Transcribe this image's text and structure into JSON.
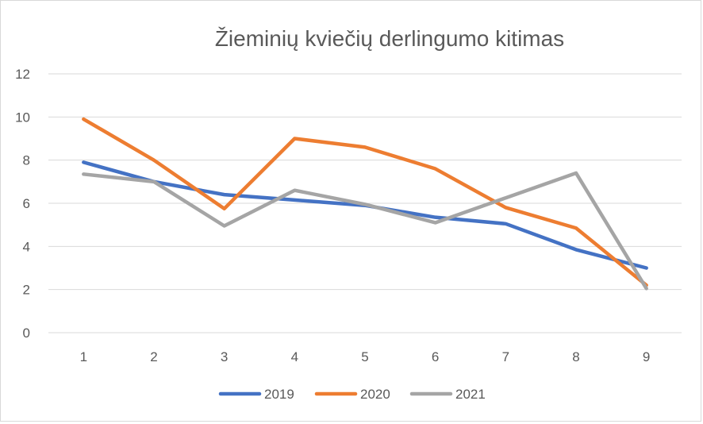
{
  "chart_data": {
    "type": "line",
    "title": "Žieminių kviečių derlingumo kitimas",
    "xlabel": "",
    "ylabel": "",
    "categories": [
      "1",
      "2",
      "3",
      "4",
      "5",
      "6",
      "7",
      "8",
      "9"
    ],
    "ylim": [
      0,
      12
    ],
    "yticks": [
      0,
      2,
      4,
      6,
      8,
      10,
      12
    ],
    "grid": true,
    "legend_position": "bottom",
    "series": [
      {
        "name": "2019",
        "color": "#4472c4",
        "values": [
          7.9,
          7.0,
          6.4,
          6.15,
          5.9,
          5.35,
          5.05,
          3.85,
          3.0
        ]
      },
      {
        "name": "2020",
        "color": "#ed7d31",
        "values": [
          9.9,
          8.0,
          5.75,
          9.0,
          8.6,
          7.6,
          5.8,
          4.85,
          2.2
        ]
      },
      {
        "name": "2021",
        "color": "#a5a5a5",
        "values": [
          7.35,
          7.0,
          4.95,
          6.6,
          5.95,
          5.1,
          6.25,
          7.4,
          2.05
        ]
      }
    ]
  }
}
